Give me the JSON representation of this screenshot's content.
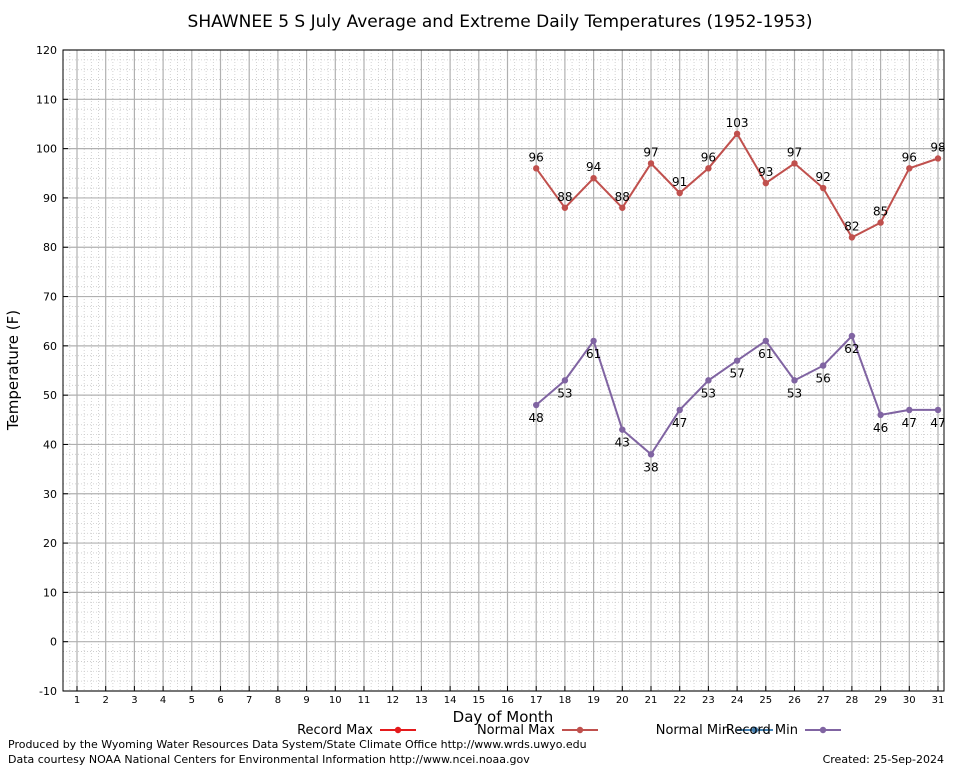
{
  "chart_data": {
    "type": "line",
    "title": "SHAWNEE 5 S July Average and Extreme Daily Temperatures (1952-1953)",
    "xlabel": "Day of Month",
    "ylabel": "Temperature (F)",
    "xlim": [
      1,
      31
    ],
    "ylim": [
      -10,
      120
    ],
    "x_ticks": [
      1,
      2,
      3,
      4,
      5,
      6,
      7,
      8,
      9,
      10,
      11,
      12,
      13,
      14,
      15,
      16,
      17,
      18,
      19,
      20,
      21,
      22,
      23,
      24,
      25,
      26,
      27,
      28,
      29,
      30,
      31
    ],
    "y_ticks": [
      -10,
      0,
      10,
      20,
      30,
      40,
      50,
      60,
      70,
      80,
      90,
      100,
      110,
      120
    ],
    "grid": true,
    "legend_position": "bottom",
    "series": [
      {
        "name": "Record Max",
        "color": "#e41a1c",
        "x": [],
        "values": []
      },
      {
        "name": "Normal Max",
        "color": "#c0504d",
        "x": [
          17,
          18,
          19,
          20,
          21,
          22,
          23,
          24,
          25,
          26,
          27,
          28,
          29,
          30,
          31
        ],
        "values": [
          96,
          88,
          94,
          88,
          97,
          91,
          96,
          103,
          93,
          97,
          92,
          82,
          85,
          96,
          98
        ],
        "label_position": [
          "above",
          "above",
          "above",
          "above",
          "above",
          "above",
          "above",
          "above",
          "above",
          "above",
          "above",
          "above",
          "above",
          "above",
          "above"
        ]
      },
      {
        "name": "Normal Min",
        "color": "#4682b4",
        "x": [],
        "values": []
      },
      {
        "name": "Record Min",
        "color": "#8064a2",
        "x": [
          17,
          18,
          19,
          20,
          21,
          22,
          23,
          24,
          25,
          26,
          27,
          28,
          29,
          30,
          31
        ],
        "values": [
          48,
          53,
          61,
          43,
          38,
          47,
          53,
          57,
          61,
          53,
          56,
          62,
          46,
          47,
          47
        ],
        "label_position": [
          "below",
          "below",
          "below",
          "below",
          "below",
          "below",
          "below",
          "below",
          "below",
          "below",
          "below",
          "below",
          "below",
          "below",
          "below"
        ]
      }
    ]
  },
  "footer": {
    "produced_by": "Produced by the Wyoming Water Resources Data System/State Climate Office http://www.wrds.uwyo.edu",
    "courtesy": "Data courtesy NOAA National Centers for Environmental Information http://www.ncei.noaa.gov",
    "created": "Created: 25-Sep-2024"
  }
}
